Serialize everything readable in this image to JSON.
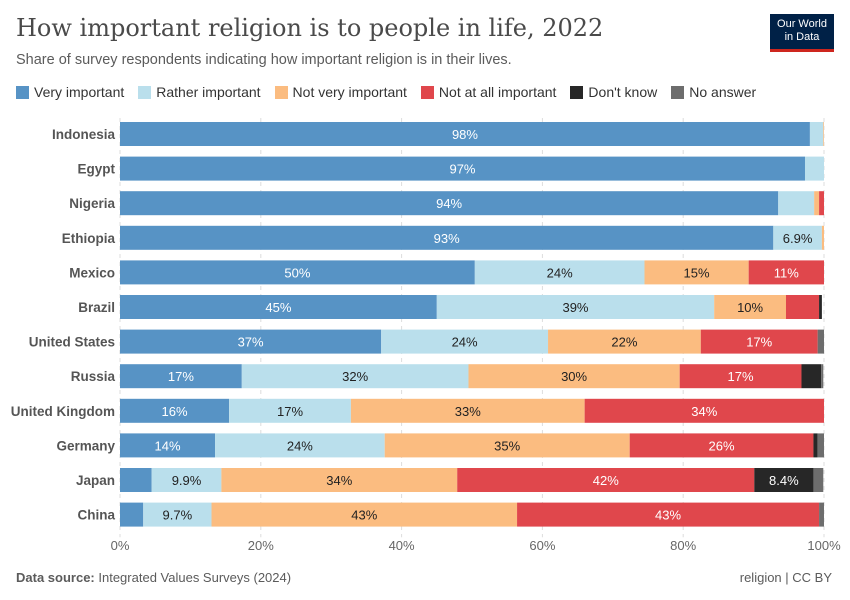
{
  "header": {
    "title": "How important religion is to people in life, 2022",
    "subtitle": "Share of survey respondents indicating how important religion is in their lives.",
    "logo": "Our World in Data"
  },
  "footer": {
    "source_label": "Data source:",
    "source": "Integrated Values Surveys (2024)",
    "license": "religion | CC BY"
  },
  "chart_data": {
    "type": "bar",
    "orientation": "horizontal",
    "stacked": true,
    "title": "How important religion is to people in life, 2022",
    "subtitle": "Share of survey respondents indicating how important religion is in their lives.",
    "xlim": [
      0,
      100
    ],
    "x_ticks": [
      "0%",
      "20%",
      "40%",
      "60%",
      "80%",
      "100%"
    ],
    "grid": "vertical dashed",
    "legend_position": "top",
    "categories": [
      "Indonesia",
      "Egypt",
      "Nigeria",
      "Ethiopia",
      "Mexico",
      "Brazil",
      "United States",
      "Russia",
      "United Kingdom",
      "Germany",
      "Japan",
      "China"
    ],
    "series": [
      {
        "name": "Very important",
        "color": "#5793c5",
        "label_color": "#ffffff",
        "values": [
          98.0,
          97.3,
          93.5,
          92.8,
          50.4,
          45.0,
          37.1,
          17.3,
          15.5,
          13.5,
          4.5,
          3.3
        ]
      },
      {
        "name": "Rather important",
        "color": "#badfec",
        "label_color": "#222222",
        "values": [
          1.9,
          2.7,
          5.1,
          6.9,
          24.1,
          39.4,
          23.7,
          32.2,
          17.3,
          24.1,
          9.9,
          9.7
        ]
      },
      {
        "name": "Not very important",
        "color": "#fbbc80",
        "label_color": "#222222",
        "values": [
          0.1,
          0,
          0.7,
          0.3,
          14.8,
          10.2,
          21.7,
          30.0,
          33.2,
          34.8,
          33.5,
          43.4
        ]
      },
      {
        "name": "Not at all important",
        "color": "#e0474c",
        "label_color": "#ffffff",
        "values": [
          0,
          0,
          0.7,
          0,
          10.7,
          4.7,
          16.6,
          17.3,
          34.0,
          26.1,
          42.2,
          42.9
        ]
      },
      {
        "name": "Don't know",
        "color": "#272727",
        "label_color": "#ffffff",
        "values": [
          0,
          0,
          0,
          0,
          0,
          0.4,
          0,
          2.8,
          0,
          0.6,
          8.4,
          0
        ]
      },
      {
        "name": "No answer",
        "color": "#6d6d6d",
        "label_color": "#ffffff",
        "values": [
          0,
          0,
          0,
          0,
          0,
          0,
          0.9,
          0.3,
          0,
          0.9,
          1.4,
          0.7
        ]
      }
    ]
  }
}
